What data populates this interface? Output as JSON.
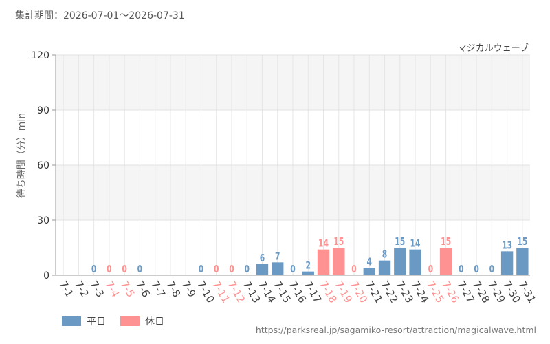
{
  "header": {
    "period_text": "集計期間：2026-07-01～2026-07-31"
  },
  "footer": {
    "source_url": "https://parksreal.jp/sagamiko-resort/attraction/magicalwave.html"
  },
  "colors": {
    "weekday": "#6a9ac4",
    "holiday": "#fe9191"
  },
  "chart_data": {
    "type": "bar",
    "title": "マジカルウェーブ",
    "ylabel": "待ち時間（分）min",
    "ylim": [
      0,
      120
    ],
    "yticks": [
      0,
      30,
      60,
      90,
      120
    ],
    "categories": [
      "7-1",
      "7-2",
      "7-3",
      "7-4",
      "7-5",
      "7-6",
      "7-7",
      "7-8",
      "7-9",
      "7-10",
      "7-11",
      "7-12",
      "7-13",
      "7-14",
      "7-15",
      "7-16",
      "7-17",
      "7-18",
      "7-19",
      "7-20",
      "7-21",
      "7-22",
      "7-23",
      "7-24",
      "7-25",
      "7-26",
      "7-27",
      "7-28",
      "7-29",
      "7-30",
      "7-31"
    ],
    "values": [
      null,
      null,
      0,
      0,
      0,
      0,
      null,
      null,
      null,
      0,
      0,
      0,
      0,
      6,
      7,
      0,
      2,
      14,
      15,
      0,
      4,
      8,
      15,
      14,
      0,
      15,
      0,
      0,
      0,
      13,
      15
    ],
    "day_type": [
      "weekday",
      "weekday",
      "weekday",
      "holiday",
      "holiday",
      "weekday",
      "weekday",
      "weekday",
      "weekday",
      "weekday",
      "holiday",
      "holiday",
      "weekday",
      "weekday",
      "weekday",
      "weekday",
      "weekday",
      "holiday",
      "holiday",
      "holiday",
      "weekday",
      "weekday",
      "weekday",
      "weekday",
      "holiday",
      "holiday",
      "weekday",
      "weekday",
      "weekday",
      "weekday",
      "weekday"
    ],
    "legend": [
      {
        "label": "平日",
        "type": "weekday"
      },
      {
        "label": "休日",
        "type": "holiday"
      }
    ],
    "grid": true,
    "legend_position": "bottom-left"
  }
}
